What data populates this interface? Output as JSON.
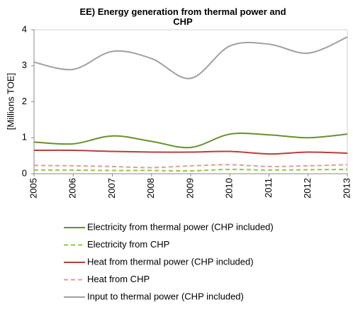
{
  "chart_data": {
    "type": "line",
    "title": "EE) Energy generation from thermal power and CHP",
    "y_label": "[Millions TOE]",
    "categories": [
      "2005",
      "2006",
      "2007",
      "2008",
      "2009",
      "2010",
      "2011",
      "2012",
      "2013"
    ],
    "series": [
      {
        "name": "Electricity from thermal power (CHP included)",
        "color": "#6a8f2e",
        "dash": false,
        "values": [
          0.88,
          0.83,
          1.05,
          0.9,
          0.73,
          1.1,
          1.08,
          1.0,
          1.1
        ]
      },
      {
        "name": "Electricity from CHP",
        "color": "#92c83e",
        "dash": true,
        "values": [
          0.1,
          0.1,
          0.09,
          0.09,
          0.08,
          0.12,
          0.1,
          0.11,
          0.12
        ]
      },
      {
        "name": "Heat from thermal power (CHP included)",
        "color": "#b7403b",
        "dash": false,
        "values": [
          0.65,
          0.65,
          0.62,
          0.6,
          0.6,
          0.62,
          0.55,
          0.6,
          0.57
        ]
      },
      {
        "name": "Heat from CHP",
        "color": "#e59c97",
        "dash": true,
        "values": [
          0.23,
          0.22,
          0.2,
          0.17,
          0.22,
          0.25,
          0.2,
          0.22,
          0.25
        ]
      },
      {
        "name": "Input to thermal power (CHP included)",
        "color": "#a0a0a0",
        "dash": false,
        "values": [
          3.1,
          2.9,
          3.4,
          3.2,
          2.65,
          3.55,
          3.6,
          3.35,
          3.8
        ]
      }
    ],
    "ylim": [
      0,
      4
    ],
    "yticks": [
      0,
      1,
      2,
      3,
      4
    ],
    "grid": false
  }
}
